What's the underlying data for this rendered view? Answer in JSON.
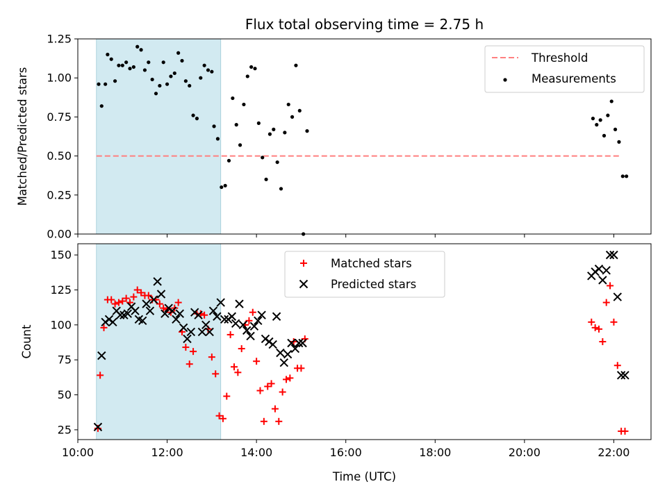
{
  "chart_data": [
    {
      "type": "scatter",
      "title": "Flux total observing time = 2.75 h",
      "ylabel": "Matched/Predicted stars",
      "xlim": [
        "10:00",
        "22:50"
      ],
      "ylim": [
        0,
        1.25
      ],
      "yticks": [
        "0.00",
        "0.25",
        "0.50",
        "0.75",
        "1.00",
        "1.25"
      ],
      "shaded_span": [
        "10:25",
        "13:12"
      ],
      "shade_color": "#add8e6",
      "threshold": {
        "name": "Threshold",
        "value": 0.5,
        "color": "#ff7f7f"
      },
      "legend_position": "upper right",
      "series": [
        {
          "name": "Measurements",
          "color": "#000000",
          "x": [
            "10:28",
            "10:32",
            "10:37",
            "10:40",
            "10:45",
            "10:50",
            "10:55",
            "11:00",
            "11:05",
            "11:10",
            "11:15",
            "11:20",
            "11:25",
            "11:30",
            "11:35",
            "11:40",
            "11:45",
            "11:50",
            "11:55",
            "12:00",
            "12:05",
            "12:10",
            "12:15",
            "12:20",
            "12:25",
            "12:30",
            "12:35",
            "12:40",
            "12:45",
            "12:50",
            "12:55",
            "13:00",
            "13:03",
            "13:08",
            "13:13",
            "13:18",
            "13:23",
            "13:28",
            "13:33",
            "13:38",
            "13:43",
            "13:48",
            "13:53",
            "13:58",
            "14:03",
            "14:08",
            "14:13",
            "14:18",
            "14:23",
            "14:28",
            "14:33",
            "14:38",
            "14:43",
            "14:48",
            "14:53",
            "14:58",
            "15:03",
            "15:08",
            "21:32",
            "21:37",
            "21:42",
            "21:47",
            "21:52",
            "21:57",
            "22:02",
            "22:07",
            "22:12",
            "22:17"
          ],
          "y": [
            0.96,
            0.82,
            0.96,
            1.15,
            1.12,
            0.98,
            1.08,
            1.08,
            1.1,
            1.06,
            1.07,
            1.2,
            1.18,
            1.05,
            1.1,
            0.99,
            0.9,
            0.95,
            1.1,
            0.96,
            1.01,
            1.03,
            1.16,
            1.11,
            0.98,
            0.95,
            0.76,
            0.74,
            1.0,
            1.08,
            1.05,
            1.04,
            0.69,
            0.61,
            0.3,
            0.31,
            0.47,
            0.87,
            0.7,
            0.57,
            0.83,
            1.01,
            1.07,
            1.06,
            0.71,
            0.49,
            0.35,
            0.64,
            0.67,
            0.46,
            0.29,
            0.65,
            0.83,
            0.75,
            1.08,
            0.79,
            0.0,
            0.66,
            0.74,
            0.7,
            0.73,
            0.63,
            0.76,
            0.85,
            0.67,
            0.59,
            0.37,
            0.37
          ]
        }
      ]
    },
    {
      "type": "scatter",
      "xlabel": "Time (UTC)",
      "ylabel": "Count",
      "xlim": [
        "10:00",
        "22:50"
      ],
      "ylim": [
        18,
        158
      ],
      "xticks": [
        "10:00",
        "12:00",
        "14:00",
        "16:00",
        "18:00",
        "20:00",
        "22:00"
      ],
      "yticks": [
        "25",
        "50",
        "75",
        "100",
        "125",
        "150"
      ],
      "shaded_span": [
        "10:25",
        "13:12"
      ],
      "shade_color": "#add8e6",
      "legend_position": "upper center",
      "series": [
        {
          "name": "Matched stars",
          "marker": "plus",
          "color": "#ff0000",
          "x": [
            "10:27",
            "10:30",
            "10:35",
            "10:40",
            "10:45",
            "10:50",
            "10:55",
            "11:00",
            "11:05",
            "11:10",
            "11:15",
            "11:20",
            "11:25",
            "11:30",
            "11:35",
            "11:40",
            "11:45",
            "11:50",
            "11:55",
            "12:00",
            "12:05",
            "12:10",
            "12:15",
            "12:20",
            "12:25",
            "12:30",
            "12:35",
            "12:40",
            "12:45",
            "12:50",
            "12:55",
            "13:00",
            "13:05",
            "13:10",
            "13:15",
            "13:20",
            "13:25",
            "13:30",
            "13:35",
            "13:40",
            "13:45",
            "13:50",
            "13:55",
            "14:00",
            "14:05",
            "14:10",
            "14:15",
            "14:20",
            "14:25",
            "14:30",
            "14:35",
            "14:40",
            "14:45",
            "14:50",
            "14:55",
            "15:00",
            "15:05",
            "21:30",
            "21:35",
            "21:40",
            "21:45",
            "21:50",
            "21:55",
            "22:00",
            "22:05",
            "22:10",
            "22:15"
          ],
          "y": [
            26,
            64,
            98,
            118,
            118,
            115,
            116,
            117,
            119,
            116,
            120,
            125,
            123,
            121,
            121,
            118,
            118,
            115,
            112,
            111,
            109,
            112,
            116,
            95,
            84,
            72,
            81,
            108,
            108,
            107,
            97,
            77,
            65,
            35,
            33,
            49,
            93,
            70,
            66,
            83,
            100,
            103,
            109,
            74,
            53,
            31,
            56,
            58,
            40,
            31,
            52,
            61,
            62,
            88,
            69,
            69,
            90,
            102,
            98,
            97,
            88,
            116,
            128,
            102,
            71,
            24,
            24
          ]
        },
        {
          "name": "Predicted stars",
          "marker": "x",
          "color": "#000000",
          "x": [
            "10:27",
            "10:32",
            "10:37",
            "10:42",
            "10:47",
            "10:52",
            "10:57",
            "11:02",
            "11:07",
            "11:12",
            "11:17",
            "11:22",
            "11:27",
            "11:32",
            "11:37",
            "11:42",
            "11:47",
            "11:52",
            "11:57",
            "12:02",
            "12:07",
            "12:12",
            "12:17",
            "12:22",
            "12:27",
            "12:32",
            "12:37",
            "12:42",
            "12:47",
            "12:52",
            "12:57",
            "13:02",
            "13:07",
            "13:12",
            "13:17",
            "13:22",
            "13:27",
            "13:32",
            "13:37",
            "13:42",
            "13:47",
            "13:52",
            "13:57",
            "14:02",
            "14:07",
            "14:12",
            "14:17",
            "14:22",
            "14:27",
            "14:32",
            "14:37",
            "14:42",
            "14:47",
            "14:52",
            "14:57",
            "15:02",
            "21:30",
            "21:35",
            "21:40",
            "21:45",
            "21:50",
            "21:55",
            "22:00",
            "22:05",
            "22:10",
            "22:15"
          ],
          "y": [
            27,
            78,
            102,
            104,
            102,
            110,
            107,
            107,
            108,
            113,
            110,
            104,
            103,
            115,
            110,
            118,
            131,
            122,
            108,
            112,
            110,
            104,
            108,
            98,
            90,
            95,
            109,
            107,
            95,
            100,
            95,
            110,
            106,
            116,
            104,
            104,
            106,
            101,
            115,
            100,
            96,
            92,
            99,
            103,
            107,
            90,
            88,
            86,
            106,
            80,
            73,
            79,
            87,
            83,
            87,
            87,
            135,
            138,
            140,
            132,
            139,
            150,
            150,
            120,
            64,
            64
          ]
        }
      ]
    }
  ]
}
